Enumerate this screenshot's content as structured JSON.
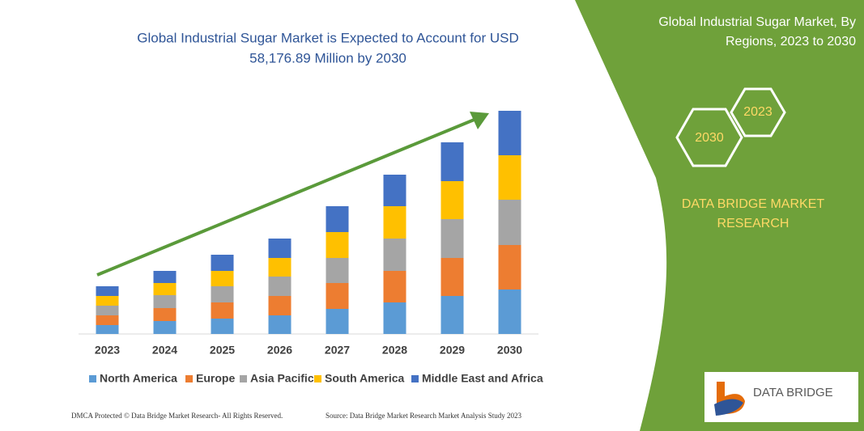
{
  "chart_data": {
    "type": "stacked-bar",
    "title": [
      "Global Industrial Sugar Market is Expected to Account for USD",
      "58,176.89 Million by 2030"
    ],
    "categories": [
      "2023",
      "2024",
      "2025",
      "2026",
      "2027",
      "2028",
      "2029",
      "2030"
    ],
    "series": [
      {
        "name": "North America",
        "color": "#5b9bd5",
        "values": [
          11,
          16,
          19,
          23,
          31,
          39,
          47,
          55
        ]
      },
      {
        "name": "Europe",
        "color": "#ed7d31",
        "values": [
          12,
          16,
          20,
          24,
          32,
          39,
          47,
          55
        ]
      },
      {
        "name": "Asia Pacific",
        "color": "#a5a5a5",
        "values": [
          12,
          16,
          20,
          24,
          31,
          40,
          48,
          56
        ]
      },
      {
        "name": "South America",
        "color": "#ffc000",
        "values": [
          12,
          15,
          19,
          23,
          32,
          40,
          47,
          55
        ]
      },
      {
        "name": "Middle East and Africa",
        "color": "#4472c4",
        "values": [
          12,
          15,
          20,
          24,
          32,
          39,
          48,
          55
        ]
      }
    ]
  },
  "panel": {
    "title": [
      "Global Industrial Sugar Market, By",
      "Regions, 2023 to 2030"
    ],
    "hexagons": [
      "2023",
      "2030"
    ],
    "brand": [
      "DATA BRIDGE MARKET",
      "RESEARCH"
    ]
  },
  "footer": {
    "left": "DMCA Protected © Data Bridge Market Research- All Rights Reserved.",
    "right": "Source: Data Bridge Market Research Market Analysis Study 2023"
  },
  "logo": {
    "text": "DATA BRIDGE"
  }
}
